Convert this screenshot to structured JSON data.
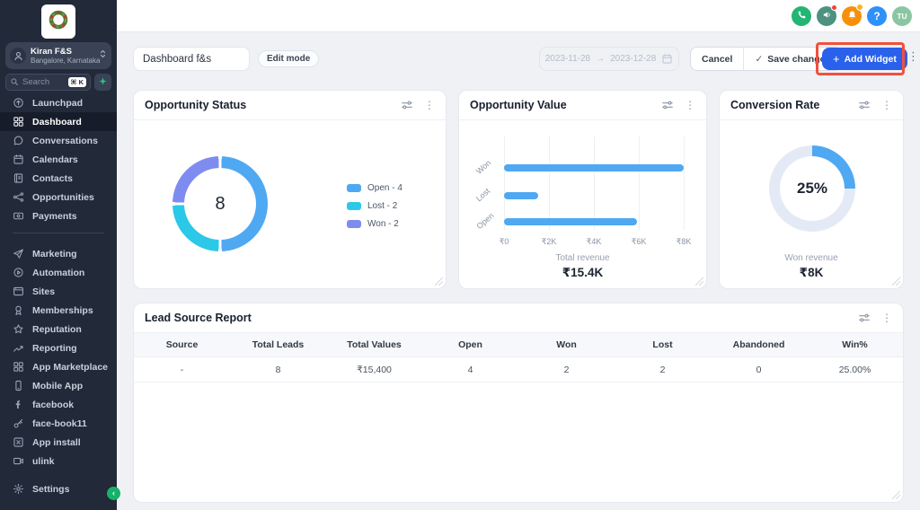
{
  "colors": {
    "chart_blue": "#4FA8F2",
    "chart_cyan": "#2BC8E8",
    "chart_purple": "#7E8CF0",
    "donut_track": "#E4EAF5",
    "accent_blue": "#2961EB",
    "annotation_red": "#F2503E",
    "phone_green": "#22B573",
    "megaphone_green": "#4E9181",
    "bell_orange": "#F79009",
    "help_blue": "#2E90FA",
    "avatar_green": "#8BC6A3"
  },
  "sidebar": {
    "account": {
      "name": "Kiran F&S",
      "location": "Bangalore, Karnataka"
    },
    "search": {
      "placeholder": "Search",
      "shortcut": "⌘ K"
    },
    "menu_top": [
      {
        "icon": "launchpad",
        "label": "Launchpad",
        "active": false
      },
      {
        "icon": "dashboard",
        "label": "Dashboard",
        "active": true
      },
      {
        "icon": "conversations",
        "label": "Conversations",
        "active": false
      },
      {
        "icon": "calendars",
        "label": "Calendars",
        "active": false
      },
      {
        "icon": "contacts",
        "label": "Contacts",
        "active": false
      },
      {
        "icon": "opportunities",
        "label": "Opportunities",
        "active": false
      },
      {
        "icon": "payments",
        "label": "Payments",
        "active": false
      }
    ],
    "menu_bottom": [
      {
        "icon": "marketing",
        "label": "Marketing",
        "active": false
      },
      {
        "icon": "automation",
        "label": "Automation",
        "active": false
      },
      {
        "icon": "sites",
        "label": "Sites",
        "active": false
      },
      {
        "icon": "memberships",
        "label": "Memberships",
        "active": false
      },
      {
        "icon": "reputation",
        "label": "Reputation",
        "active": false
      },
      {
        "icon": "reporting",
        "label": "Reporting",
        "active": false
      },
      {
        "icon": "app-marketplace",
        "label": "App Marketplace",
        "active": false
      },
      {
        "icon": "mobile-app",
        "label": "Mobile App",
        "active": false
      },
      {
        "icon": "facebook",
        "label": "facebook",
        "active": false
      },
      {
        "icon": "face-book11",
        "label": "face-book11",
        "active": false
      },
      {
        "icon": "app-install",
        "label": "App install",
        "active": false
      },
      {
        "icon": "ulink",
        "label": "ulink",
        "active": false
      }
    ],
    "settings": {
      "icon": "settings",
      "label": "Settings"
    }
  },
  "topbar": {
    "help_label": "?",
    "avatar_initials": "TU"
  },
  "toolbar": {
    "dashboard_name": "Dashboard f&s",
    "edit_mode_label": "Edit mode",
    "date_start": "2023-11-28",
    "date_separator": "→",
    "date_end": "2023-12-28",
    "cancel_label": "Cancel",
    "save_check": "✓",
    "save_label": "Save changes",
    "add_widget_plus": "+",
    "add_widget_label": "Add Widget"
  },
  "cards": {
    "opportunity_status": {
      "title": "Opportunity Status",
      "type": "donut",
      "center_value": "8",
      "segments": [
        {
          "label": "Open - 4",
          "value": 4,
          "color": "#4FA8F2"
        },
        {
          "label": "Lost - 2",
          "value": 2,
          "color": "#2BC8E8"
        },
        {
          "label": "Won - 2",
          "value": 2,
          "color": "#7E8CF0"
        }
      ]
    },
    "opportunity_value": {
      "title": "Opportunity Value",
      "type": "bar",
      "categories": [
        "Won",
        "Lost",
        "Open"
      ],
      "values": [
        8000,
        1500,
        5900
      ],
      "xmax": 8000,
      "ticks": [
        "₹0",
        "₹2K",
        "₹4K",
        "₹6K",
        "₹8K"
      ],
      "footer_label": "Total revenue",
      "footer_value": "₹15.4K"
    },
    "conversion_rate": {
      "title": "Conversion Rate",
      "type": "donut",
      "percent": 25,
      "center_label": "25%",
      "footer_label": "Won revenue",
      "footer_value": "₹8K"
    }
  },
  "table": {
    "title": "Lead Source Report",
    "columns": [
      "Source",
      "Total Leads",
      "Total Values",
      "Open",
      "Won",
      "Lost",
      "Abandoned",
      "Win%"
    ],
    "rows": [
      [
        "-",
        "8",
        "₹15,400",
        "4",
        "2",
        "2",
        "0",
        "25.00%"
      ]
    ]
  }
}
